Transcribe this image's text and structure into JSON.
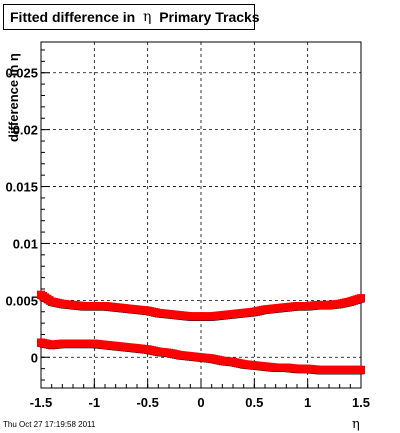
{
  "title": {
    "main": "Fitted difference in",
    "symbol": "η",
    "rest": "Primary Tracks"
  },
  "timestamp": "Thu Oct 27 17:19:58 2011",
  "chart_data": {
    "type": "scatter",
    "title": "Fitted difference in η Primary Tracks",
    "xlabel": "η",
    "ylabel": "difference in η",
    "xlim": [
      -1.5,
      1.5
    ],
    "ylim": [
      -0.0027,
      0.0277
    ],
    "grid": true,
    "x_ticks": [
      -1.5,
      -1,
      -0.5,
      0,
      0.5,
      1,
      1.5
    ],
    "x_tick_labels": [
      "-1.5",
      "-1",
      "-0.5",
      "0",
      "0.5",
      "1",
      "1.5"
    ],
    "y_ticks": [
      0,
      0.005,
      0.01,
      0.015,
      0.02,
      0.025
    ],
    "y_tick_labels": [
      "0",
      "0.005",
      "0.01",
      "0.015",
      "0.02",
      "0.025"
    ],
    "series": [
      {
        "color": "#ff0000",
        "x": [
          -1.5,
          -1.4,
          -1.3,
          -1.2,
          -1.1,
          -1.0,
          -0.9,
          -0.8,
          -0.7,
          -0.6,
          -0.5,
          -0.4,
          -0.3,
          -0.2,
          -0.1,
          0.0,
          0.1,
          0.2,
          0.3,
          0.4,
          0.5,
          0.6,
          0.7,
          0.8,
          0.9,
          1.0,
          1.1,
          1.2,
          1.3,
          1.4,
          1.5
        ],
        "values": [
          0.0055,
          0.0049,
          0.0047,
          0.0046,
          0.0045,
          0.0045,
          0.0045,
          0.0044,
          0.0043,
          0.0042,
          0.0041,
          0.0039,
          0.0038,
          0.0037,
          0.0036,
          0.0036,
          0.0036,
          0.0037,
          0.0038,
          0.0039,
          0.004,
          0.0042,
          0.0043,
          0.0044,
          0.0045,
          0.0045,
          0.0046,
          0.0046,
          0.0047,
          0.0049,
          0.0052
        ]
      },
      {
        "color": "#ff0000",
        "x": [
          -1.5,
          -1.4,
          -1.3,
          -1.2,
          -1.1,
          -1.0,
          -0.9,
          -0.8,
          -0.7,
          -0.6,
          -0.5,
          -0.4,
          -0.3,
          -0.2,
          -0.1,
          0.0,
          0.1,
          0.2,
          0.3,
          0.4,
          0.5,
          0.6,
          0.7,
          0.8,
          0.9,
          1.0,
          1.1,
          1.2,
          1.3,
          1.4,
          1.5
        ],
        "values": [
          0.0013,
          0.0011,
          0.0012,
          0.0012,
          0.0012,
          0.0012,
          0.0011,
          0.001,
          0.0009,
          0.0008,
          0.0007,
          0.0005,
          0.0004,
          0.0002,
          0.0001,
          0.0,
          -0.0001,
          -0.0003,
          -0.0004,
          -0.0006,
          -0.0007,
          -0.0008,
          -0.0009,
          -0.0009,
          -0.001,
          -0.001,
          -0.0011,
          -0.0011,
          -0.0011,
          -0.0011,
          -0.0011
        ]
      }
    ]
  }
}
